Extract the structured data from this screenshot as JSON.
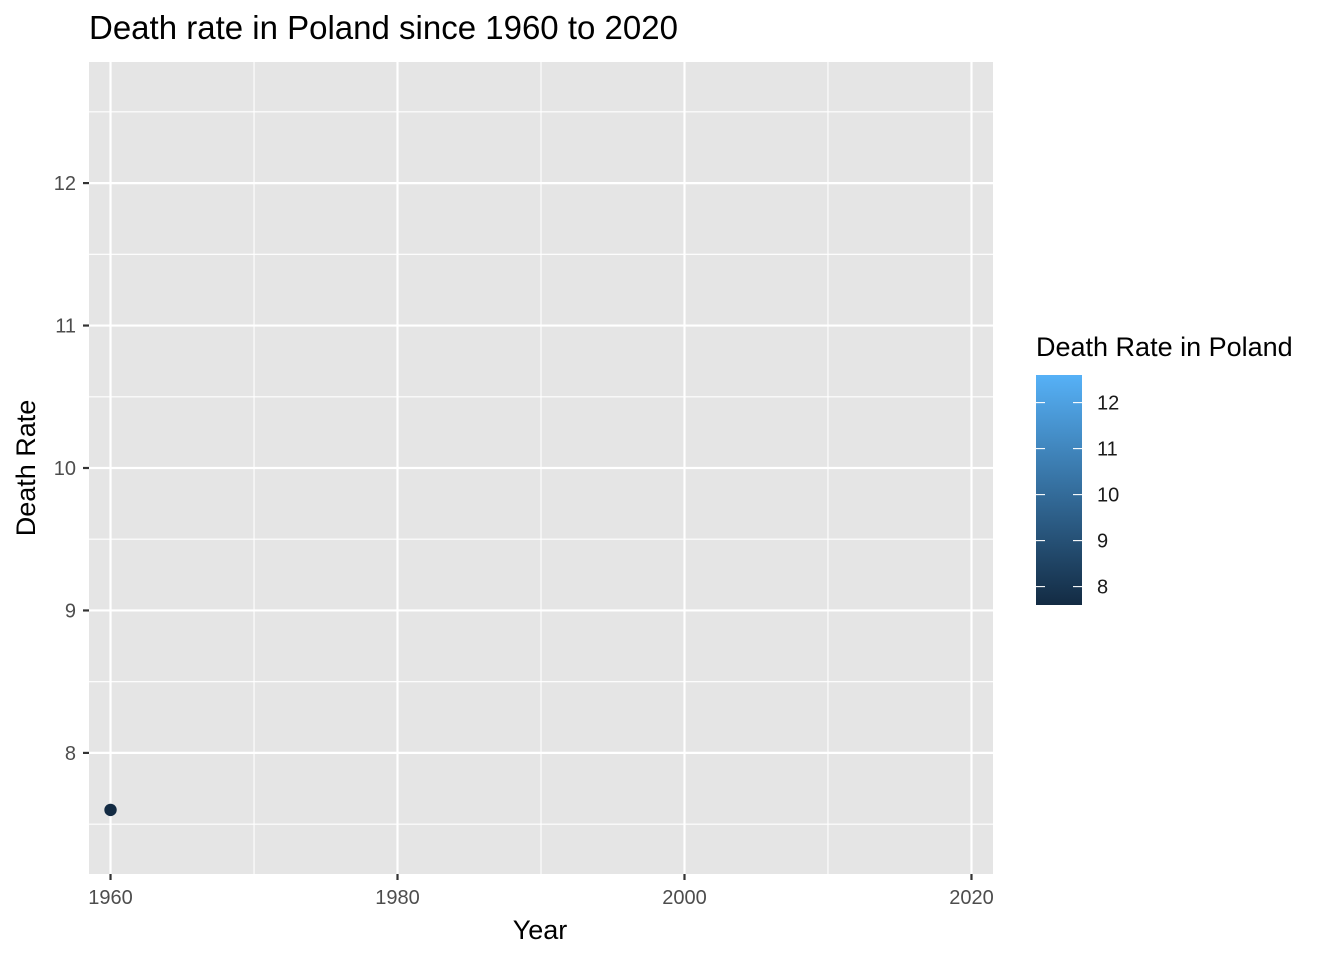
{
  "chart_data": {
    "type": "scatter",
    "title": "Death rate in Poland since 1960 to 2020",
    "xlabel": "Year",
    "ylabel": "Death Rate",
    "xlim": [
      1958.5,
      2021.5
    ],
    "ylim": [
      7.15,
      12.85
    ],
    "x_ticks": [
      1960,
      1980,
      2000,
      2020
    ],
    "y_ticks": [
      8,
      9,
      10,
      11,
      12
    ],
    "grid": true,
    "series": [
      {
        "points": [
          {
            "x": 1960,
            "y": 7.6
          }
        ]
      }
    ],
    "legend": {
      "title": "Death Rate in Poland",
      "type": "colorbar",
      "position": "right",
      "range": [
        7.6,
        12.6
      ],
      "ticks": [
        8,
        9,
        10,
        11,
        12
      ],
      "color_low": "#132b43",
      "color_high": "#56b1f7"
    },
    "colors": {
      "panel_background": "#e5e5e5",
      "grid": "#ffffff",
      "point": "#132b43"
    }
  }
}
